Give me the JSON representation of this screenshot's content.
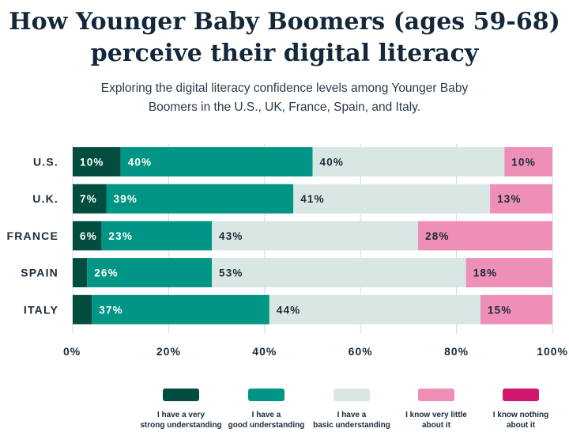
{
  "chart_data": {
    "type": "bar",
    "orientation": "horizontal",
    "stacked": true,
    "title": "How Younger Baby Boomers (ages 59-68)\nperceive their digital literacy",
    "subtitle": "Exploring the digital literacy confidence levels among Younger Baby Boomers in the U.S., UK, France, Spain, and Italy.",
    "categories": [
      "U.S.",
      "U.K.",
      "FRANCE",
      "SPAIN",
      "ITALY"
    ],
    "xlim": [
      0,
      100
    ],
    "xticks": [
      "0%",
      "20%",
      "40%",
      "60%",
      "80%",
      "100%"
    ],
    "grid": true,
    "legend_position": "bottom",
    "series": [
      {
        "name": "I have a very strong understanding",
        "color": "#024d3f",
        "values": [
          10,
          7,
          6,
          3,
          4
        ],
        "labels": [
          "10%",
          "7%",
          "6%",
          "",
          ""
        ],
        "label_color": "#ffffff"
      },
      {
        "name": "I have a good understanding",
        "color": "#009585",
        "values": [
          40,
          39,
          23,
          26,
          37
        ],
        "labels": [
          "40%",
          "39%",
          "23%",
          "26%",
          "37%"
        ],
        "label_color": "#ffffff"
      },
      {
        "name": "I have a basic understanding",
        "color": "#d9e7e4",
        "values": [
          40,
          41,
          43,
          53,
          44
        ],
        "labels": [
          "40%",
          "41%",
          "43%",
          "53%",
          "44%"
        ],
        "label_color": "#1b2a3a"
      },
      {
        "name": "I know very little about it",
        "color": "#ee8fb7",
        "values": [
          10,
          13,
          28,
          18,
          15
        ],
        "labels": [
          "10%",
          "13%",
          "28%",
          "18%",
          "15%"
        ],
        "label_color": "#1b2a3a"
      },
      {
        "name": "I know nothing about it",
        "color": "#d0176b",
        "values": [
          0,
          0,
          0,
          0,
          0
        ],
        "labels": [
          "",
          "",
          "",
          "",
          ""
        ],
        "label_color": "#ffffff"
      }
    ]
  }
}
